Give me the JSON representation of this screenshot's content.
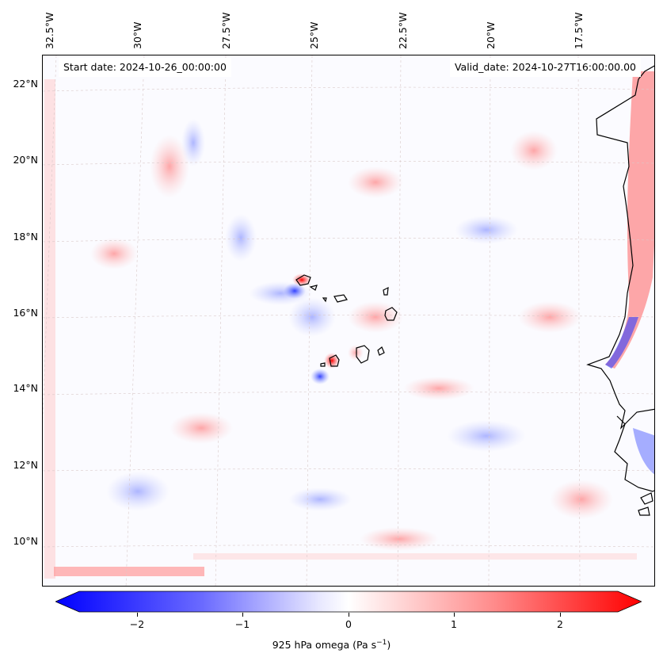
{
  "header": {
    "start_date": "Start date: 2024-10-26_00:00:00",
    "valid_date": "Valid_date: 2024-10-27T16:00:00.00"
  },
  "map": {
    "lon_labels": [
      "32.5°W",
      "30°W",
      "27.5°W",
      "25°W",
      "22.5°W",
      "20°W",
      "17.5°W"
    ],
    "lat_labels": [
      "22°N",
      "20°N",
      "18°N",
      "16°N",
      "14°N",
      "12°N",
      "10°N"
    ],
    "features": [
      "cape-verde-islands",
      "west-africa-coastline",
      "gridlines"
    ]
  },
  "colorbar": {
    "ticks": [
      "−2",
      "−1",
      "0",
      "1",
      "2"
    ],
    "label": "925 hPa omega (Pa s",
    "label_sup": "−1",
    "label_end": ")",
    "colors": {
      "min": "#0000ff",
      "mid": "#ffffff",
      "max": "#ff0000"
    }
  }
}
